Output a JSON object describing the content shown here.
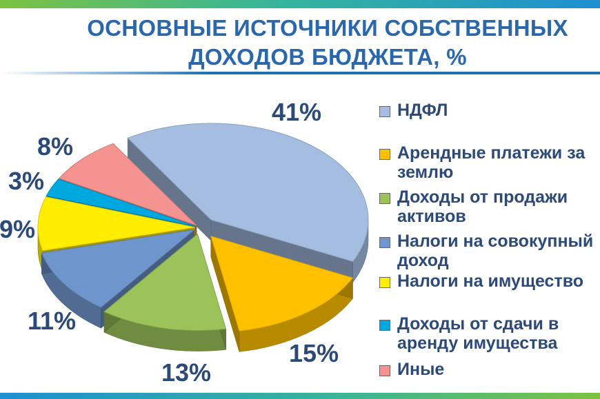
{
  "title_line1": "ОСНОВНЫЕ ИСТОЧНИКИ СОБСТВЕННЫХ",
  "title_line2": "ДОХОДОВ БЮДЖЕТА, %",
  "chart_data": {
    "type": "pie",
    "title": "ОСНОВНЫЕ ИСТОЧНИКИ СОБСТВЕННЫХ ДОХОДОВ БЮДЖЕТА, %",
    "legend_position": "right",
    "exploded": true,
    "slices": [
      {
        "name": "НДФЛ",
        "value": 41,
        "label": "41%",
        "color": "#a4bde0"
      },
      {
        "name": "Арендные платежи за землю",
        "value": 15,
        "label": "15%",
        "color": "#ffc000"
      },
      {
        "name": "Доходы от продажи активов",
        "value": 13,
        "label": "13%",
        "color": "#9bc35a"
      },
      {
        "name": "Налоги на совокупный доход",
        "value": 11,
        "label": "11%",
        "color": "#6f96cc"
      },
      {
        "name": "Налоги на имущество",
        "value": 9,
        "label": "9%",
        "color": "#ffed00"
      },
      {
        "name": "Доходы от сдачи в аренду имущества",
        "value": 3,
        "label": "3%",
        "color": "#00a8e0"
      },
      {
        "name": "Иные",
        "value": 8,
        "label": "8%",
        "color": "#f4938f"
      }
    ]
  }
}
